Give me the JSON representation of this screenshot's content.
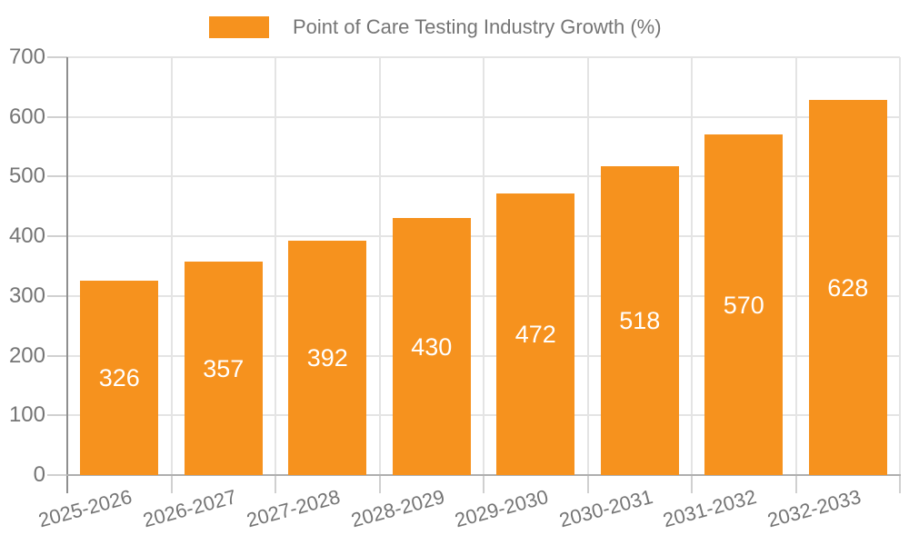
{
  "chart_data": {
    "type": "bar",
    "title": "Point of Care Testing Industry Growth (%)",
    "categories": [
      "2025-2026",
      "2026-2027",
      "2027-2028",
      "2028-2029",
      "2029-2030",
      "2030-2031",
      "2031-2032",
      "2032-2033"
    ],
    "values": [
      326,
      357,
      392,
      430,
      472,
      518,
      570,
      628
    ],
    "xlabel": "",
    "ylabel": "",
    "ylim": [
      0,
      700
    ],
    "y_ticks": [
      0,
      100,
      200,
      300,
      400,
      500,
      600,
      700
    ],
    "grid": true,
    "legend_position": "top-center",
    "bar_label_position": "inside-middle"
  },
  "colors": {
    "bar": "#F6921E",
    "bar_label": "#FFFFFF",
    "axis_text": "#757575",
    "grid_line": "#E4E4E4",
    "tick": "#D0D0D0",
    "axis_line_y": "#8F8F8F",
    "axis_line_x": "#AFAFAF",
    "background": "#FFFFFF"
  }
}
